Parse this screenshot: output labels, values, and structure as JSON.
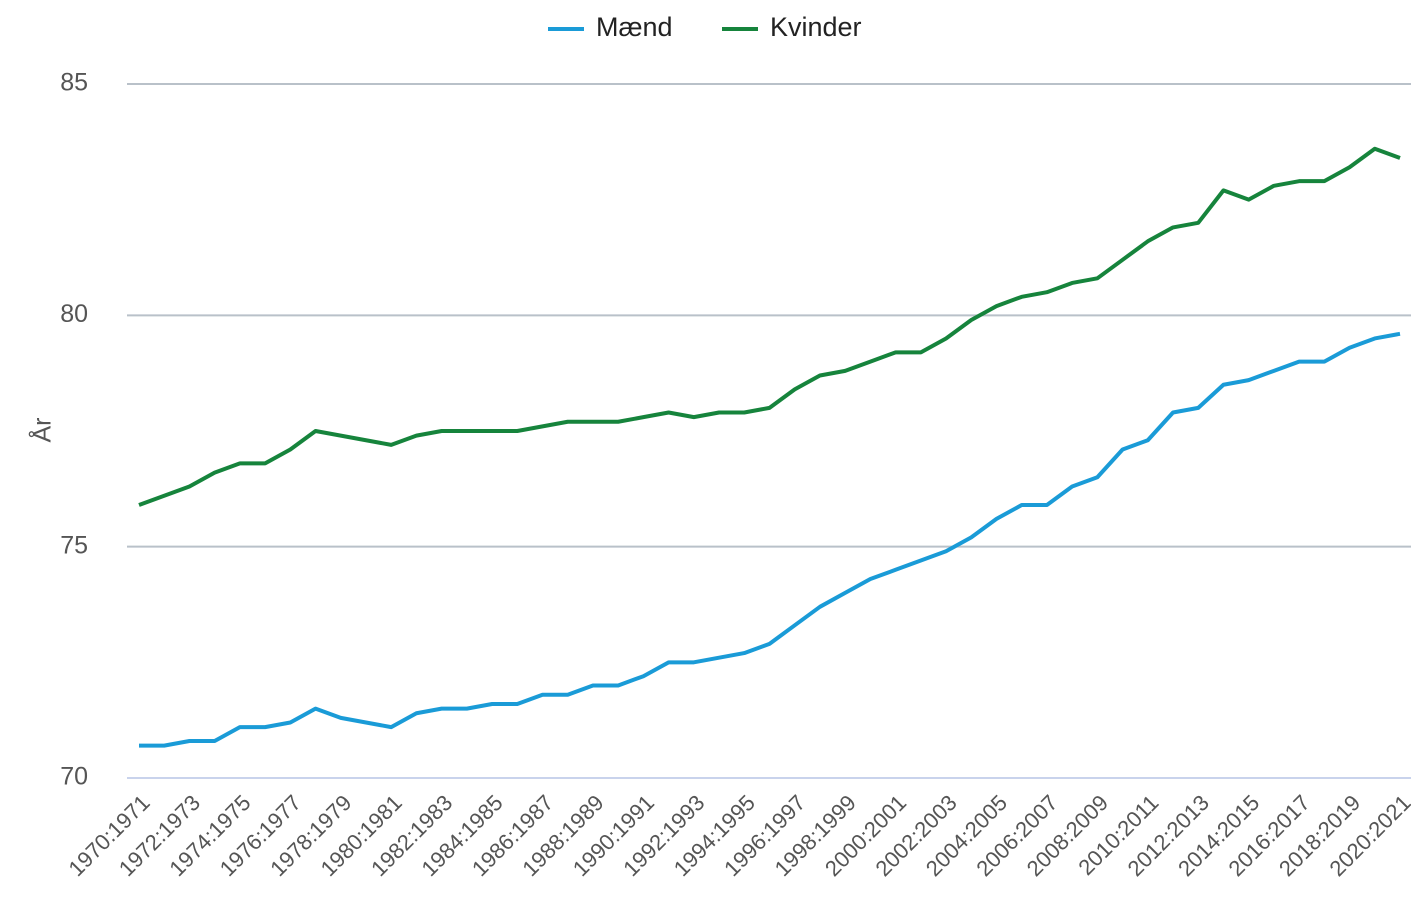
{
  "chart_data": {
    "type": "line",
    "ylabel": "År",
    "categories": [
      "1970:1971",
      null,
      "1972:1973",
      null,
      "1974:1975",
      null,
      "1976:1977",
      null,
      "1978:1979",
      null,
      "1980:1981",
      null,
      "1982:1983",
      null,
      "1984:1985",
      null,
      "1986:1987",
      null,
      "1988:1989",
      null,
      "1990:1991",
      null,
      "1992:1993",
      null,
      "1994:1995",
      null,
      "1996:1997",
      null,
      "1998:1999",
      null,
      "2000:2001",
      null,
      "2002:2003",
      null,
      "2004:2005",
      null,
      "2006:2007",
      null,
      "2008:2009",
      null,
      "2010:2011",
      null,
      "2012:2013",
      null,
      "2014:2015",
      null,
      "2016:2017",
      null,
      "2018:2019",
      null,
      "2020:2021"
    ],
    "series": [
      {
        "name": "Mænd",
        "color": "#1a9bd7",
        "values": [
          70.7,
          70.7,
          70.8,
          70.8,
          71.1,
          71.1,
          71.2,
          71.5,
          71.3,
          71.2,
          71.1,
          71.4,
          71.5,
          71.5,
          71.6,
          71.6,
          71.8,
          71.8,
          72.0,
          72.0,
          72.2,
          72.5,
          72.5,
          72.6,
          72.7,
          72.9,
          73.3,
          73.7,
          74.0,
          74.3,
          74.5,
          74.7,
          74.9,
          75.2,
          75.6,
          75.9,
          75.9,
          76.3,
          76.5,
          77.1,
          77.3,
          77.9,
          78.0,
          78.5,
          78.6,
          78.8,
          79.0,
          79.0,
          79.3,
          79.5,
          79.6
        ]
      },
      {
        "name": "Kvinder",
        "color": "#16843c",
        "values": [
          75.9,
          76.1,
          76.3,
          76.6,
          76.8,
          76.8,
          77.1,
          77.5,
          77.4,
          77.3,
          77.2,
          77.4,
          77.5,
          77.5,
          77.5,
          77.5,
          77.6,
          77.7,
          77.7,
          77.7,
          77.8,
          77.9,
          77.8,
          77.9,
          77.9,
          78.0,
          78.4,
          78.7,
          78.8,
          79.0,
          79.2,
          79.2,
          79.5,
          79.9,
          80.2,
          80.4,
          80.5,
          80.7,
          80.8,
          81.2,
          81.6,
          81.9,
          82.0,
          82.7,
          82.5,
          82.8,
          82.9,
          82.9,
          83.2,
          83.6,
          83.4
        ]
      }
    ],
    "ylim": [
      70,
      85
    ],
    "yticks": [
      70,
      75,
      80,
      85
    ],
    "grid": true,
    "legend": "top"
  }
}
